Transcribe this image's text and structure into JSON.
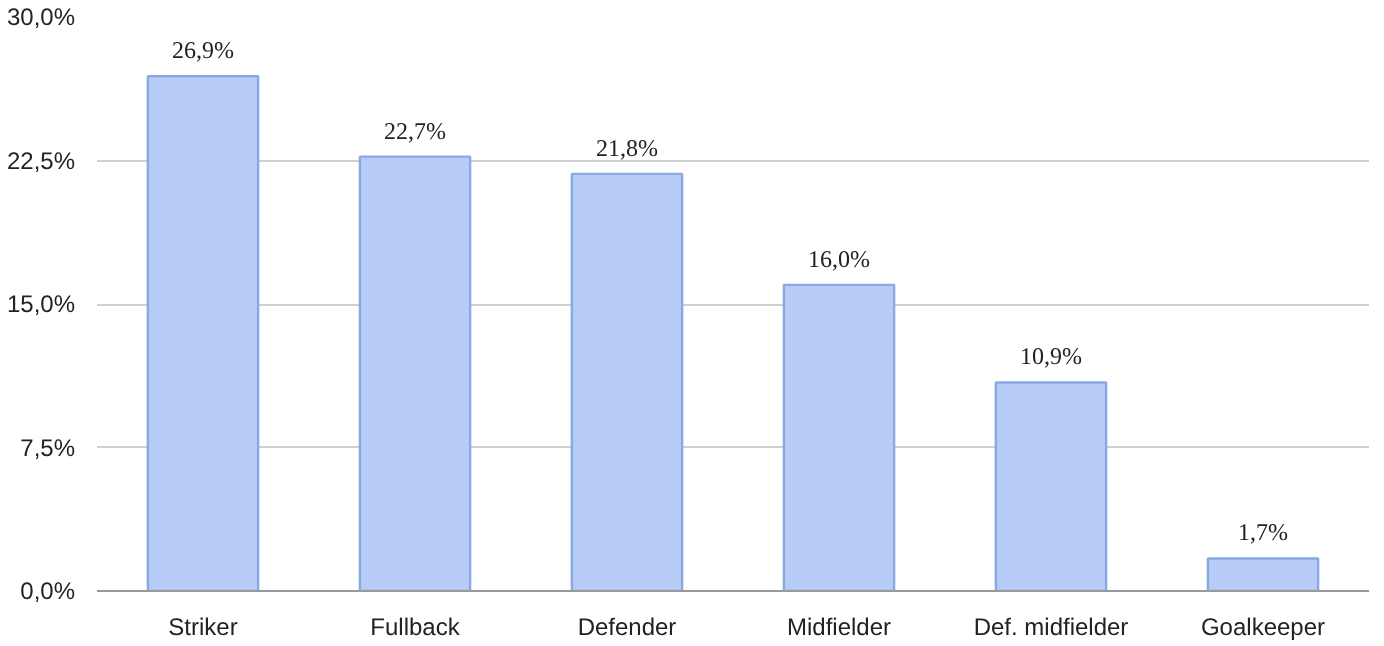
{
  "chart_data": {
    "type": "bar",
    "categories": [
      "Striker",
      "Fullback",
      "Defender",
      "Midfielder",
      "Def. midfielder",
      "Goalkeeper"
    ],
    "values": [
      26.9,
      22.7,
      21.8,
      16.0,
      10.9,
      1.7
    ],
    "value_labels": [
      "26,9%",
      "22,7%",
      "21,8%",
      "16,0%",
      "10,9%",
      "1,7%"
    ],
    "color": "#b7cdf7",
    "ylim": [
      0,
      30
    ],
    "yticks": [
      {
        "value": 0,
        "label": "0,0%"
      },
      {
        "value": 7.5,
        "label": "7,5%"
      },
      {
        "value": 15,
        "label": "15,0%"
      },
      {
        "value": 22.5,
        "label": "22,5%"
      },
      {
        "value": 30,
        "label": "30,0%"
      }
    ],
    "grid": "y"
  }
}
